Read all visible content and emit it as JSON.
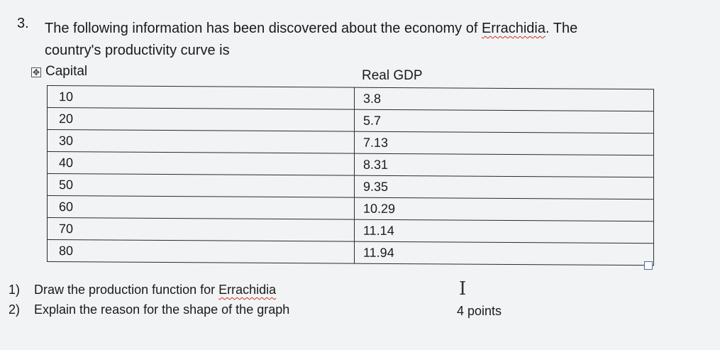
{
  "question": {
    "number": "3.",
    "line1_prefix": "The following information has been discovered about the economy of ",
    "country": "Errachidia",
    "line1_suffix": ". The",
    "line2": "country's productivity curve is"
  },
  "table": {
    "move_handle_icon": "move-handle-icon",
    "headers": {
      "capital": "Capital",
      "real_gdp": "Real GDP"
    },
    "rows": [
      {
        "capital": "10",
        "gdp": "3.8"
      },
      {
        "capital": "20",
        "gdp": "5.7"
      },
      {
        "capital": "30",
        "gdp": "7.13"
      },
      {
        "capital": "40",
        "gdp": "8.31"
      },
      {
        "capital": "50",
        "gdp": "9.35"
      },
      {
        "capital": "60",
        "gdp": "10.29"
      },
      {
        "capital": "70",
        "gdp": "11.14"
      },
      {
        "capital": "80",
        "gdp": "11.94"
      }
    ]
  },
  "tasks": [
    {
      "num": "1)",
      "text_prefix": "Draw the production function for ",
      "country": "Errachidia"
    },
    {
      "num": "2)",
      "text": "Explain the reason for the shape of the graph"
    }
  ],
  "points": "4 points"
}
